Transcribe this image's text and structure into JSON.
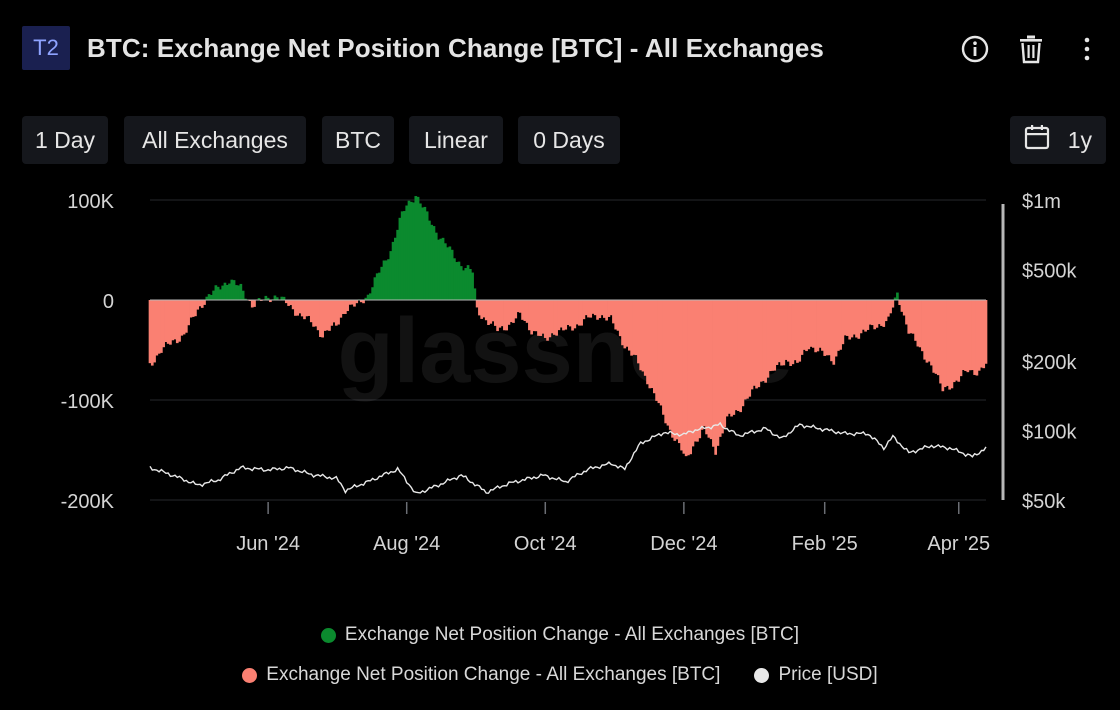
{
  "header": {
    "badge": "T2",
    "title": "BTC: Exchange Net Position Change [BTC] - All Exchanges",
    "icons": [
      "info-icon",
      "trash-icon",
      "more-vertical-icon"
    ]
  },
  "toolbar": {
    "resolution": "1 Day",
    "exchange": "All Exchanges",
    "currency": "BTC",
    "scale": "Linear",
    "sma": "0 Days",
    "range": "1y",
    "range_icon": "calendar-icon"
  },
  "watermark": "glassnode",
  "chart_data": {
    "type": "area",
    "x_start": "2024-04-10",
    "x_end": "2025-04-13",
    "x_ticks": [
      "Jun '24",
      "Aug '24",
      "Oct '24",
      "Dec '24",
      "Feb '25",
      "Apr '25"
    ],
    "y_left_ticks": [
      "100K",
      "0",
      "-100K",
      "-200K"
    ],
    "y_left_range": [
      -200000,
      100000
    ],
    "y_right_ticks": [
      "$1m",
      "$500k",
      "$200k",
      "$100k",
      "$50k"
    ],
    "y_right_scale": "log",
    "y_right_range": [
      50000,
      1000000
    ],
    "grid": true,
    "legend_position": "bottom",
    "colors": {
      "positive": "#0b8a2e",
      "negative": "#fa8072",
      "price": "#e8e8e8"
    },
    "series": [
      {
        "name": "Exchange Net Position Change - All Exchanges [BTC]",
        "kind": "area-positive",
        "points": [
          [
            "2024-04-10",
            -65000
          ],
          [
            "2024-04-15",
            -50000
          ],
          [
            "2024-04-20",
            -42000
          ],
          [
            "2024-04-25",
            -35000
          ],
          [
            "2024-05-01",
            -10000
          ],
          [
            "2024-05-05",
            2000
          ],
          [
            "2024-05-10",
            12000
          ],
          [
            "2024-05-15",
            20000
          ],
          [
            "2024-05-20",
            12000
          ],
          [
            "2024-05-25",
            -5000
          ],
          [
            "2024-06-01",
            2000
          ],
          [
            "2024-06-05",
            4000
          ],
          [
            "2024-06-10",
            -5000
          ],
          [
            "2024-06-15",
            -15000
          ],
          [
            "2024-06-20",
            -22000
          ],
          [
            "2024-06-25",
            -35000
          ],
          [
            "2024-07-01",
            -25000
          ],
          [
            "2024-07-05",
            -10000
          ],
          [
            "2024-07-10",
            -5000
          ],
          [
            "2024-07-15",
            5000
          ],
          [
            "2024-07-20",
            28000
          ],
          [
            "2024-07-25",
            50000
          ],
          [
            "2024-07-30",
            85000
          ],
          [
            "2024-08-01",
            95000
          ],
          [
            "2024-08-05",
            105000
          ],
          [
            "2024-08-10",
            85000
          ],
          [
            "2024-08-15",
            65000
          ],
          [
            "2024-08-20",
            50000
          ],
          [
            "2024-08-25",
            35000
          ],
          [
            "2024-08-30",
            28000
          ],
          [
            "2024-09-01",
            -10000
          ],
          [
            "2024-09-05",
            -20000
          ],
          [
            "2024-09-10",
            -30000
          ],
          [
            "2024-09-15",
            -25000
          ],
          [
            "2024-09-20",
            -15000
          ],
          [
            "2024-09-25",
            -30000
          ],
          [
            "2024-10-01",
            -40000
          ],
          [
            "2024-10-05",
            -32000
          ],
          [
            "2024-10-10",
            -30000
          ],
          [
            "2024-10-15",
            -25000
          ],
          [
            "2024-10-20",
            -18000
          ],
          [
            "2024-10-25",
            -15000
          ],
          [
            "2024-10-30",
            -20000
          ],
          [
            "2024-11-05",
            -45000
          ],
          [
            "2024-11-10",
            -60000
          ],
          [
            "2024-11-15",
            -80000
          ],
          [
            "2024-11-20",
            -105000
          ],
          [
            "2024-11-25",
            -130000
          ],
          [
            "2024-11-30",
            -150000
          ],
          [
            "2024-12-02",
            -160000
          ],
          [
            "2024-12-05",
            -145000
          ],
          [
            "2024-12-10",
            -130000
          ],
          [
            "2024-12-15",
            -150000
          ],
          [
            "2024-12-20",
            -120000
          ],
          [
            "2024-12-25",
            -110000
          ],
          [
            "2025-01-01",
            -90000
          ],
          [
            "2025-01-05",
            -80000
          ],
          [
            "2025-01-10",
            -70000
          ],
          [
            "2025-01-15",
            -60000
          ],
          [
            "2025-01-20",
            -65000
          ],
          [
            "2025-01-25",
            -45000
          ],
          [
            "2025-02-01",
            -55000
          ],
          [
            "2025-02-05",
            -60000
          ],
          [
            "2025-02-10",
            -40000
          ],
          [
            "2025-02-15",
            -35000
          ],
          [
            "2025-02-20",
            -30000
          ],
          [
            "2025-02-25",
            -25000
          ],
          [
            "2025-03-01",
            -20000
          ],
          [
            "2025-03-05",
            5000
          ],
          [
            "2025-03-10",
            -30000
          ],
          [
            "2025-03-15",
            -50000
          ],
          [
            "2025-03-20",
            -65000
          ],
          [
            "2025-03-25",
            -90000
          ],
          [
            "2025-04-01",
            -80000
          ],
          [
            "2025-04-05",
            -70000
          ],
          [
            "2025-04-10",
            -72000
          ],
          [
            "2025-04-13",
            -65000
          ]
        ]
      },
      {
        "name": "Exchange Net Position Change - All Exchanges [BTC]",
        "kind": "area-negative"
      },
      {
        "name": "Price [USD]",
        "kind": "line",
        "axis": "right",
        "points": [
          [
            "2024-04-10",
            69000
          ],
          [
            "2024-04-20",
            64000
          ],
          [
            "2024-05-01",
            58000
          ],
          [
            "2024-05-10",
            61000
          ],
          [
            "2024-05-20",
            69000
          ],
          [
            "2024-06-01",
            67500
          ],
          [
            "2024-06-10",
            69000
          ],
          [
            "2024-06-20",
            64500
          ],
          [
            "2024-07-01",
            62000
          ],
          [
            "2024-07-05",
            55000
          ],
          [
            "2024-07-15",
            60000
          ],
          [
            "2024-07-28",
            68000
          ],
          [
            "2024-08-05",
            53000
          ],
          [
            "2024-08-15",
            58000
          ],
          [
            "2024-08-25",
            64000
          ],
          [
            "2024-09-05",
            54000
          ],
          [
            "2024-09-15",
            59000
          ],
          [
            "2024-09-30",
            64000
          ],
          [
            "2024-10-10",
            60000
          ],
          [
            "2024-10-20",
            68000
          ],
          [
            "2024-10-30",
            72000
          ],
          [
            "2024-11-05",
            68000
          ],
          [
            "2024-11-12",
            88000
          ],
          [
            "2024-11-22",
            98000
          ],
          [
            "2024-12-01",
            96000
          ],
          [
            "2024-12-05",
            100000
          ],
          [
            "2024-12-17",
            106000
          ],
          [
            "2024-12-25",
            95000
          ],
          [
            "2025-01-06",
            102000
          ],
          [
            "2025-01-13",
            92000
          ],
          [
            "2025-01-21",
            106000
          ],
          [
            "2025-02-01",
            101000
          ],
          [
            "2025-02-10",
            97000
          ],
          [
            "2025-02-20",
            97000
          ],
          [
            "2025-02-27",
            84000
          ],
          [
            "2025-03-03",
            94000
          ],
          [
            "2025-03-10",
            80000
          ],
          [
            "2025-03-20",
            86000
          ],
          [
            "2025-03-28",
            84000
          ],
          [
            "2025-04-07",
            77000
          ],
          [
            "2025-04-13",
            84000
          ]
        ]
      }
    ]
  }
}
